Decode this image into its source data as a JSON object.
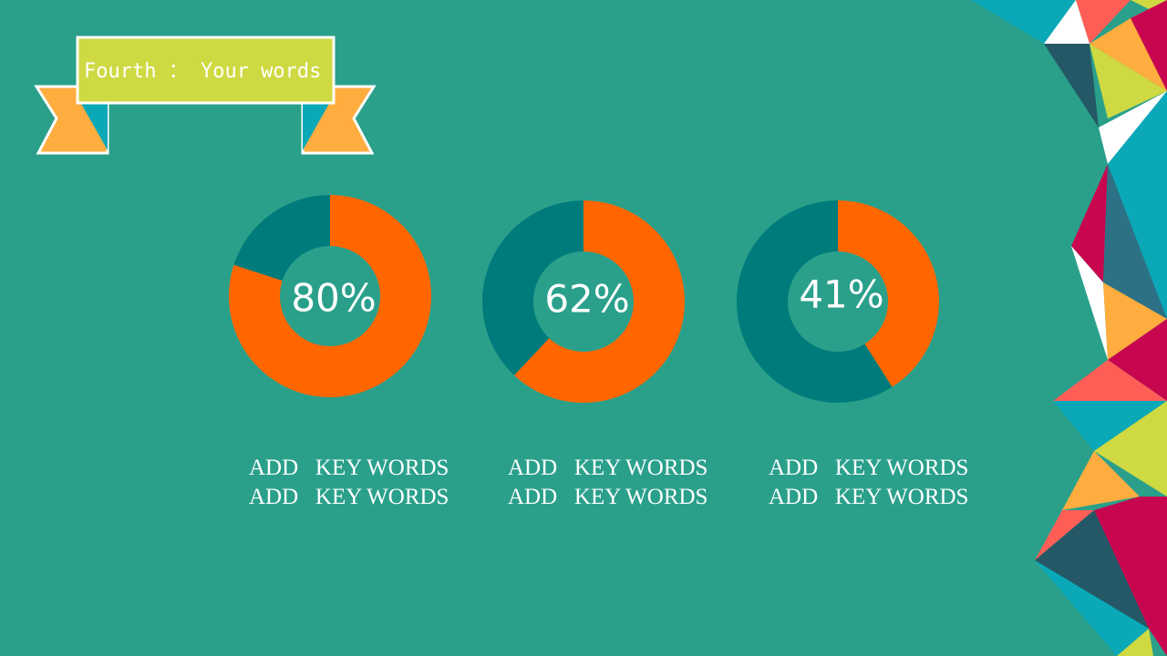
{
  "banner": {
    "title": "Fourth ： Your words"
  },
  "chart_data": [
    {
      "type": "donut",
      "values": [
        80,
        20
      ],
      "value_labels": [
        "80%",
        null
      ],
      "colors": [
        "#ff6600",
        "#007b7b"
      ],
      "caption": [
        "ADD   KEY WORDS",
        "ADD   KEY WORDS"
      ]
    },
    {
      "type": "donut",
      "values": [
        62,
        38
      ],
      "value_labels": [
        "62%",
        null
      ],
      "colors": [
        "#ff6600",
        "#007b7b"
      ],
      "caption": [
        "ADD   KEY WORDS",
        "ADD   KEY WORDS"
      ]
    },
    {
      "type": "donut",
      "values": [
        41,
        59
      ],
      "value_labels": [
        "41%",
        null
      ],
      "colors": [
        "#ff6600",
        "#007b7b"
      ],
      "caption": [
        "ADD   KEY WORDS",
        "ADD   KEY WORDS"
      ]
    }
  ]
}
